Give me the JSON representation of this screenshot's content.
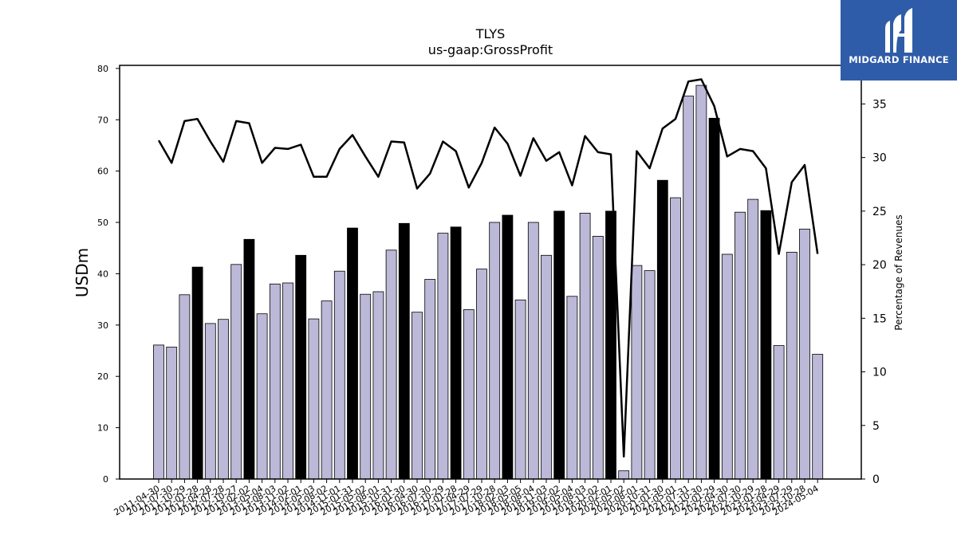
{
  "chart_data": {
    "type": "bar",
    "title": "TLYS",
    "subtitle": "us-gaap:GrossProfit",
    "ylabel": "USDm",
    "y2label": "Percentage of Revenues",
    "ylim": [
      0,
      80.6
    ],
    "y2lim": [
      0,
      38.6
    ],
    "yticks": [
      0,
      10,
      20,
      30,
      40,
      50,
      60,
      70,
      80
    ],
    "y2ticks": [
      0,
      5,
      10,
      15,
      20,
      25,
      30,
      35
    ],
    "categories": [
      "2011-04-30",
      "2011-07-30",
      "2011-10-29",
      "2012-01-28",
      "2012-04-28",
      "2012-07-28",
      "2012-10-27",
      "2013-02-02",
      "2013-05-04",
      "2013-08-03",
      "2013-11-02",
      "2014-02-01",
      "2014-05-03",
      "2014-08-02",
      "2014-11-01",
      "2015-01-31",
      "2015-05-02",
      "2015-08-01",
      "2015-10-31",
      "2016-01-30",
      "2016-04-30",
      "2016-07-30",
      "2016-10-29",
      "2017-01-28",
      "2017-04-29",
      "2017-07-29",
      "2017-10-28",
      "2018-02-03",
      "2018-05-05",
      "2018-08-04",
      "2018-11-03",
      "2019-02-02",
      "2019-05-04",
      "2019-08-03",
      "2019-11-02",
      "2020-02-01",
      "2020-05-02",
      "2020-08-01",
      "2020-10-31",
      "2021-01-30",
      "2021-05-01",
      "2021-07-31",
      "2021-10-30",
      "2022-01-29",
      "2022-04-30",
      "2022-07-30",
      "2022-10-29",
      "2023-01-28",
      "2023-04-29",
      "2023-07-29",
      "2023-10-28",
      "2024-05-04"
    ],
    "series": [
      {
        "type": "bar",
        "values": [
          26.1,
          25.7,
          35.9,
          41.3,
          30.3,
          31.1,
          41.8,
          46.7,
          32.2,
          38.0,
          38.2,
          43.6,
          31.2,
          34.7,
          40.5,
          48.9,
          36.0,
          36.5,
          44.6,
          49.8,
          32.5,
          38.9,
          47.9,
          49.1,
          33.0,
          40.9,
          50.0,
          51.4,
          34.9,
          50.0,
          43.6,
          52.2,
          35.6,
          51.8,
          47.3,
          52.2,
          1.6,
          41.6,
          40.6,
          58.2,
          54.8,
          74.6,
          76.7,
          70.3,
          43.8,
          52.0,
          54.5,
          52.3,
          26.0,
          44.2,
          48.7,
          24.3
        ],
        "fourth_quarter_flags": [
          false,
          false,
          false,
          true,
          false,
          false,
          false,
          true,
          false,
          false,
          false,
          true,
          false,
          false,
          false,
          true,
          false,
          false,
          false,
          true,
          false,
          false,
          false,
          true,
          false,
          false,
          false,
          true,
          false,
          false,
          false,
          true,
          false,
          false,
          false,
          true,
          false,
          false,
          false,
          true,
          false,
          false,
          false,
          true,
          false,
          false,
          false,
          true,
          false,
          false,
          false,
          false
        ],
        "color": "#bcb8d8",
        "highlight_color": "#000000"
      },
      {
        "type": "line",
        "axis": "right",
        "values": [
          31.6,
          29.5,
          33.4,
          33.6,
          31.5,
          29.6,
          33.4,
          33.2,
          29.5,
          30.9,
          30.8,
          31.2,
          28.2,
          28.2,
          30.8,
          32.1,
          30.1,
          28.2,
          31.5,
          31.4,
          27.1,
          28.5,
          31.5,
          30.6,
          27.2,
          29.5,
          32.8,
          31.3,
          28.3,
          31.8,
          29.7,
          30.5,
          27.4,
          32.0,
          30.5,
          30.3,
          2.1,
          30.6,
          29.0,
          32.7,
          33.6,
          37.1,
          37.3,
          34.8,
          30.1,
          30.8,
          30.6,
          29.0,
          21.0,
          27.7,
          29.3,
          21.0
        ],
        "color": "#000000"
      }
    ],
    "grid": false
  },
  "branding": {
    "name": "MIDGARD FINANCE",
    "background": "#2f5ca8",
    "icon": "midgard-logo-icon"
  }
}
